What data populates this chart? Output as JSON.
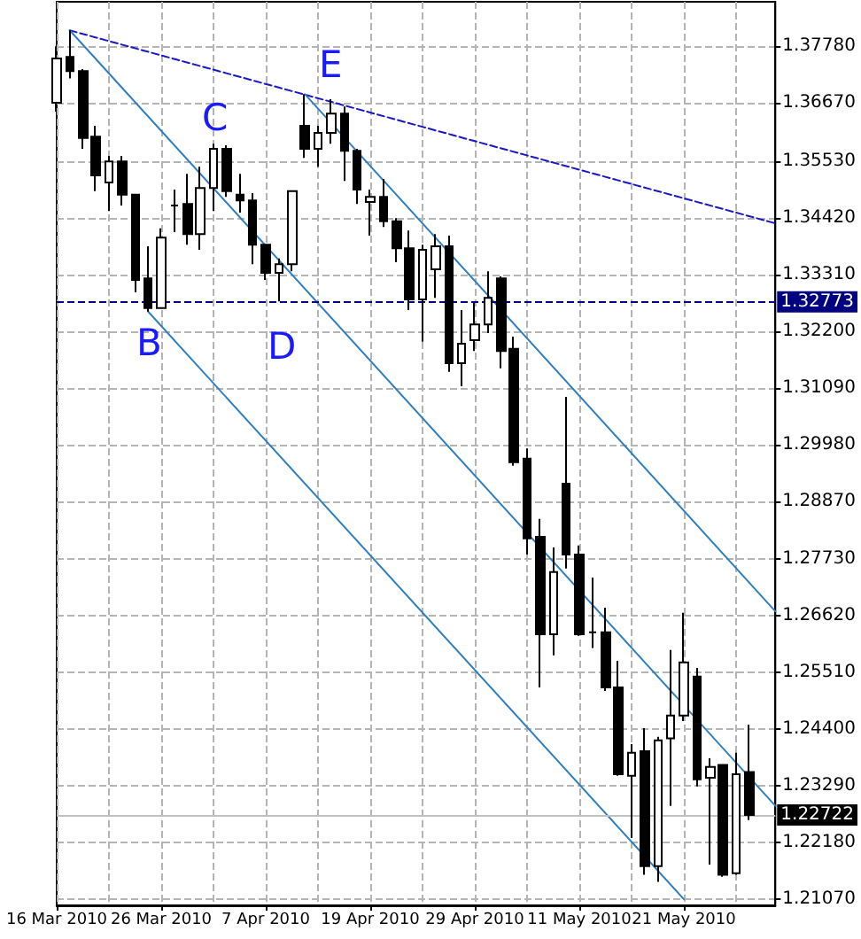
{
  "chart_data": {
    "type": "candlestick",
    "categories": [
      "16 Mar 2010",
      null,
      null,
      null,
      null,
      null,
      null,
      null,
      "26 Mar 2010",
      null,
      null,
      null,
      null,
      null,
      null,
      null,
      "7 Apr 2010",
      null,
      null,
      null,
      null,
      null,
      null,
      null,
      "19 Apr 2010",
      null,
      null,
      null,
      null,
      null,
      null,
      null,
      "29 Apr 2010",
      null,
      null,
      null,
      null,
      null,
      null,
      null,
      "11 May 2010",
      null,
      null,
      null,
      null,
      null,
      null,
      null,
      "21 May 2010",
      null,
      null,
      null,
      null,
      null,
      null,
      null
    ],
    "ohlc": [
      [
        1.3667,
        1.3778,
        1.365,
        1.3754
      ],
      [
        1.3757,
        1.3809,
        1.3715,
        1.3729
      ],
      [
        1.3729,
        1.3733,
        1.3577,
        1.3598
      ],
      [
        1.3601,
        1.3622,
        1.3494,
        1.3525
      ],
      [
        1.3511,
        1.3563,
        1.3455,
        1.3552
      ],
      [
        1.3552,
        1.3563,
        1.3466,
        1.3487
      ],
      [
        1.3487,
        1.3487,
        1.3296,
        1.332
      ],
      [
        1.3323,
        1.3386,
        1.3258,
        1.3265
      ],
      [
        1.3265,
        1.3421,
        1.3265,
        1.3403
      ],
      [
        1.3466,
        1.3497,
        1.3414,
        1.3466
      ],
      [
        1.3469,
        1.3528,
        1.3389,
        1.341
      ],
      [
        1.341,
        1.3542,
        1.3379,
        1.35
      ],
      [
        1.35,
        1.3587,
        1.3455,
        1.3577
      ],
      [
        1.3577,
        1.3584,
        1.3483,
        1.3494
      ],
      [
        1.3487,
        1.3528,
        1.3452,
        1.3476
      ],
      [
        1.3476,
        1.349,
        1.3351,
        1.3389
      ],
      [
        1.3389,
        1.3389,
        1.332,
        1.3334
      ],
      [
        1.3334,
        1.3362,
        1.3278,
        1.3351
      ],
      [
        1.3351,
        1.3494,
        1.3337,
        1.3494
      ],
      [
        1.3622,
        1.3684,
        1.3559,
        1.3577
      ],
      [
        1.3577,
        1.3622,
        1.3542,
        1.3608
      ],
      [
        1.3608,
        1.3674,
        1.3587,
        1.3646
      ],
      [
        1.3646,
        1.366,
        1.3514,
        1.3573
      ],
      [
        1.3573,
        1.3577,
        1.3469,
        1.3497
      ],
      [
        1.3473,
        1.3497,
        1.3407,
        1.3483
      ],
      [
        1.3483,
        1.3518,
        1.3424,
        1.3435
      ],
      [
        1.3435,
        1.3441,
        1.3355,
        1.3382
      ],
      [
        1.3382,
        1.3417,
        1.3261,
        1.3282
      ],
      [
        1.3282,
        1.3389,
        1.3199,
        1.3379
      ],
      [
        1.3341,
        1.341,
        1.3285,
        1.3386
      ],
      [
        1.3386,
        1.3407,
        1.314,
        1.3157
      ],
      [
        1.3157,
        1.3261,
        1.3112,
        1.3195
      ],
      [
        1.3202,
        1.3275,
        1.3181,
        1.3233
      ],
      [
        1.3233,
        1.3337,
        1.3216,
        1.3285
      ],
      [
        1.3323,
        1.3327,
        1.3147,
        1.3181
      ],
      [
        1.3185,
        1.3209,
        1.2956,
        1.2963
      ],
      [
        1.297,
        1.299,
        1.2782,
        1.2814
      ],
      [
        1.2817,
        1.2852,
        1.2522,
        1.2626
      ],
      [
        1.2626,
        1.2796,
        1.2585,
        1.2748
      ],
      [
        1.2921,
        1.3091,
        1.2755,
        1.2782
      ],
      [
        1.2782,
        1.28,
        1.2623,
        1.2626
      ],
      [
        1.263,
        1.2737,
        1.2599,
        1.263
      ],
      [
        1.263,
        1.2678,
        1.2515,
        1.2522
      ],
      [
        1.2522,
        1.2574,
        1.2349,
        1.2352
      ],
      [
        1.2349,
        1.2411,
        1.2227,
        1.2394
      ],
      [
        1.2397,
        1.2442,
        1.2155,
        1.2172
      ],
      [
        1.2172,
        1.2425,
        1.2141,
        1.2418
      ],
      [
        1.2422,
        1.2595,
        1.229,
        1.2467
      ],
      [
        1.2467,
        1.2668,
        1.2456,
        1.2571
      ],
      [
        1.2543,
        1.256,
        1.2328,
        1.2342
      ],
      [
        1.2345,
        1.2383,
        1.2175,
        1.2366
      ],
      [
        1.237,
        1.237,
        1.2151,
        1.2155
      ],
      [
        1.2158,
        1.2394,
        1.2155,
        1.2352
      ],
      [
        1.2356,
        1.2449,
        1.2262,
        1.2272
      ],
      null,
      null
    ],
    "series": [
      {
        "type": "line",
        "color": "#1818c8",
        "line_style": "dashed",
        "values": [
          null,
          1.3809,
          null,
          null,
          null,
          null,
          null,
          null,
          null,
          null,
          null,
          null,
          null,
          null,
          null,
          null,
          null,
          null,
          null,
          null,
          null,
          null,
          null,
          null,
          null,
          null,
          null,
          null,
          null,
          null,
          null,
          null,
          null,
          null,
          null,
          null,
          null,
          null,
          null,
          null,
          null,
          null,
          null,
          null,
          null,
          null,
          null,
          null,
          null,
          null,
          null,
          null,
          null,
          null,
          null,
          1.3431
        ]
      },
      {
        "type": "line",
        "color": "#2f7fc0",
        "line_style": "solid",
        "values": [
          null,
          1.3809,
          null,
          null,
          null,
          null,
          null,
          null,
          null,
          null,
          null,
          null,
          null,
          null,
          null,
          null,
          null,
          null,
          null,
          null,
          null,
          null,
          null,
          null,
          null,
          null,
          null,
          null,
          null,
          null,
          null,
          null,
          null,
          null,
          null,
          null,
          null,
          null,
          null,
          null,
          null,
          null,
          null,
          null,
          null,
          null,
          null,
          null,
          null,
          null,
          null,
          null,
          null,
          null,
          null,
          1.229
        ]
      },
      {
        "type": "line",
        "color": "#2f7fc0",
        "line_style": "solid",
        "values": [
          null,
          null,
          null,
          null,
          null,
          null,
          null,
          null,
          null,
          null,
          null,
          null,
          null,
          null,
          null,
          null,
          null,
          null,
          null,
          1.3684,
          null,
          null,
          null,
          null,
          null,
          null,
          null,
          null,
          null,
          null,
          null,
          null,
          null,
          null,
          null,
          null,
          null,
          null,
          null,
          null,
          null,
          null,
          null,
          null,
          null,
          null,
          null,
          null,
          null,
          null,
          null,
          null,
          null,
          null,
          null,
          1.2671
        ]
      },
      {
        "type": "line",
        "color": "#2f7fc0",
        "line_style": "solid",
        "values": [
          null,
          null,
          null,
          null,
          null,
          null,
          null,
          1.3258,
          null,
          null,
          null,
          null,
          null,
          null,
          null,
          null,
          null,
          null,
          null,
          null,
          null,
          null,
          null,
          null,
          null,
          null,
          null,
          null,
          null,
          null,
          null,
          null,
          null,
          null,
          null,
          null,
          null,
          null,
          null,
          null,
          null,
          null,
          null,
          null,
          null,
          null,
          null,
          null,
          1.2107,
          null,
          null,
          null,
          null,
          null,
          null,
          null
        ]
      }
    ],
    "ylim": [
      1.2095,
      1.3865
    ],
    "yticks": [
      {
        "value": 1.3778,
        "label": "1.37780"
      },
      {
        "value": 1.3667,
        "label": "1.36670"
      },
      {
        "value": 1.3553,
        "label": "1.35530"
      },
      {
        "value": 1.3442,
        "label": "1.34420"
      },
      {
        "value": 1.3331,
        "label": "1.33310"
      },
      {
        "value": 1.322,
        "label": "1.32200"
      },
      {
        "value": 1.3109,
        "label": "1.31090"
      },
      {
        "value": 1.2998,
        "label": "1.29980"
      },
      {
        "value": 1.2887,
        "label": "1.28870"
      },
      {
        "value": 1.2773,
        "label": "1.27730"
      },
      {
        "value": 1.2662,
        "label": "1.26620"
      },
      {
        "value": 1.2551,
        "label": "1.25510"
      },
      {
        "value": 1.244,
        "label": "1.24400"
      },
      {
        "value": 1.2329,
        "label": "1.23290"
      },
      {
        "value": 1.2218,
        "label": "1.22180"
      },
      {
        "value": 1.2107,
        "label": "1.21070"
      }
    ],
    "ref_lines": [
      {
        "axis": "y",
        "value": 1.32773,
        "label": "1.32773",
        "color": "#000080",
        "line_style": "dashed"
      },
      {
        "axis": "y",
        "value": 1.22722,
        "label": "1.22722",
        "color": "#c0c0c0",
        "line_style": "solid"
      }
    ],
    "annotations": [
      "B",
      "C",
      "D",
      "E"
    ],
    "grid": true
  }
}
